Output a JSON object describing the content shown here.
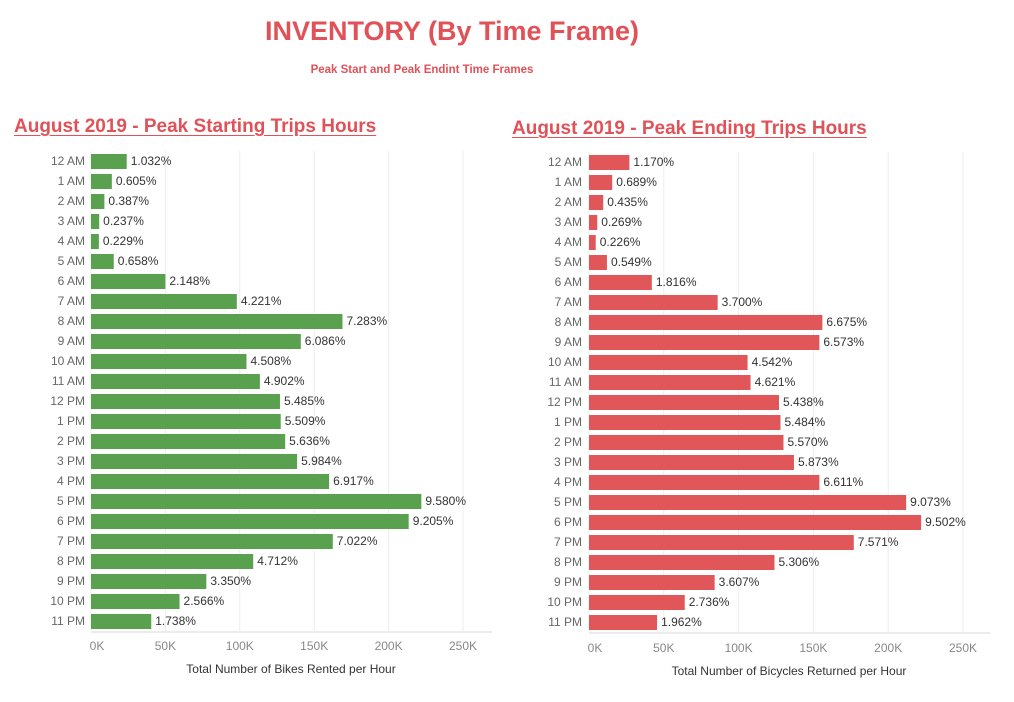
{
  "header": {
    "title": "INVENTORY (By Time Frame)",
    "subtitle": "Peak Start and Peak Endint Time Frames"
  },
  "chart_data": [
    {
      "type": "bar",
      "orientation": "horizontal",
      "title": "August 2019 - Peak Starting Trips Hours",
      "xlabel": "Total Number of Bikes Rented per Hour",
      "ylabel": "",
      "xlim": [
        0,
        270000
      ],
      "xticks": [
        0,
        50000,
        100000,
        150000,
        200000,
        250000
      ],
      "xtick_labels": [
        "0K",
        "50K",
        "100K",
        "150K",
        "200K",
        "250K"
      ],
      "grid": true,
      "color": "#59a14f",
      "categories": [
        "12 AM",
        "1 AM",
        "2 AM",
        "3 AM",
        "4 AM",
        "5 AM",
        "6 AM",
        "7 AM",
        "8 AM",
        "9 AM",
        "10 AM",
        "11 AM",
        "12 PM",
        "1 PM",
        "2 PM",
        "3 PM",
        "4 PM",
        "5 PM",
        "6 PM",
        "7 PM",
        "8 PM",
        "9 PM",
        "10 PM",
        "11 PM"
      ],
      "values": [
        24000,
        14000,
        9000,
        5500,
        5300,
        15300,
        50000,
        98000,
        169000,
        141000,
        104500,
        113500,
        127000,
        127500,
        130500,
        138500,
        160000,
        222000,
        213500,
        162500,
        109000,
        77500,
        59500,
        40500
      ],
      "data_labels": [
        "1.032%",
        "0.605%",
        "0.387%",
        "0.237%",
        "0.229%",
        "0.658%",
        "2.148%",
        "4.221%",
        "7.283%",
        "6.086%",
        "4.508%",
        "4.902%",
        "5.485%",
        "5.509%",
        "5.636%",
        "5.984%",
        "6.917%",
        "9.580%",
        "9.205%",
        "7.022%",
        "4.712%",
        "3.350%",
        "2.566%",
        "1.738%"
      ]
    },
    {
      "type": "bar",
      "orientation": "horizontal",
      "title": "August 2019 - Peak Ending Trips Hours",
      "xlabel": "Total Number of Bicycles Returned per Hour",
      "ylabel": "",
      "xlim": [
        0,
        270000
      ],
      "xticks": [
        0,
        50000,
        100000,
        150000,
        200000,
        250000
      ],
      "xtick_labels": [
        "0K",
        "50K",
        "100K",
        "150K",
        "200K",
        "250K"
      ],
      "grid": true,
      "color": "#e15759",
      "categories": [
        "12 AM",
        "1 AM",
        "2 AM",
        "3 AM",
        "4 AM",
        "5 AM",
        "6 AM",
        "7 AM",
        "8 AM",
        "9 AM",
        "10 AM",
        "11 AM",
        "12 PM",
        "1 PM",
        "2 PM",
        "3 PM",
        "4 PM",
        "5 PM",
        "6 PM",
        "7 PM",
        "8 PM",
        "9 PM",
        "10 PM",
        "11 PM"
      ],
      "values": [
        27000,
        15500,
        9500,
        5500,
        4500,
        12000,
        42000,
        86000,
        156000,
        154000,
        106000,
        108000,
        127000,
        128000,
        130000,
        137000,
        154000,
        212000,
        222000,
        177000,
        124000,
        84000,
        64000,
        45500
      ],
      "data_labels": [
        "1.170%",
        "0.689%",
        "0.435%",
        "0.269%",
        "0.226%",
        "0.549%",
        "1.816%",
        "3.700%",
        "6.675%",
        "6.573%",
        "4.542%",
        "4.621%",
        "5.438%",
        "5.484%",
        "5.570%",
        "5.873%",
        "6.611%",
        "9.073%",
        "9.502%",
        "7.571%",
        "5.306%",
        "3.607%",
        "2.736%",
        "1.962%"
      ]
    }
  ]
}
